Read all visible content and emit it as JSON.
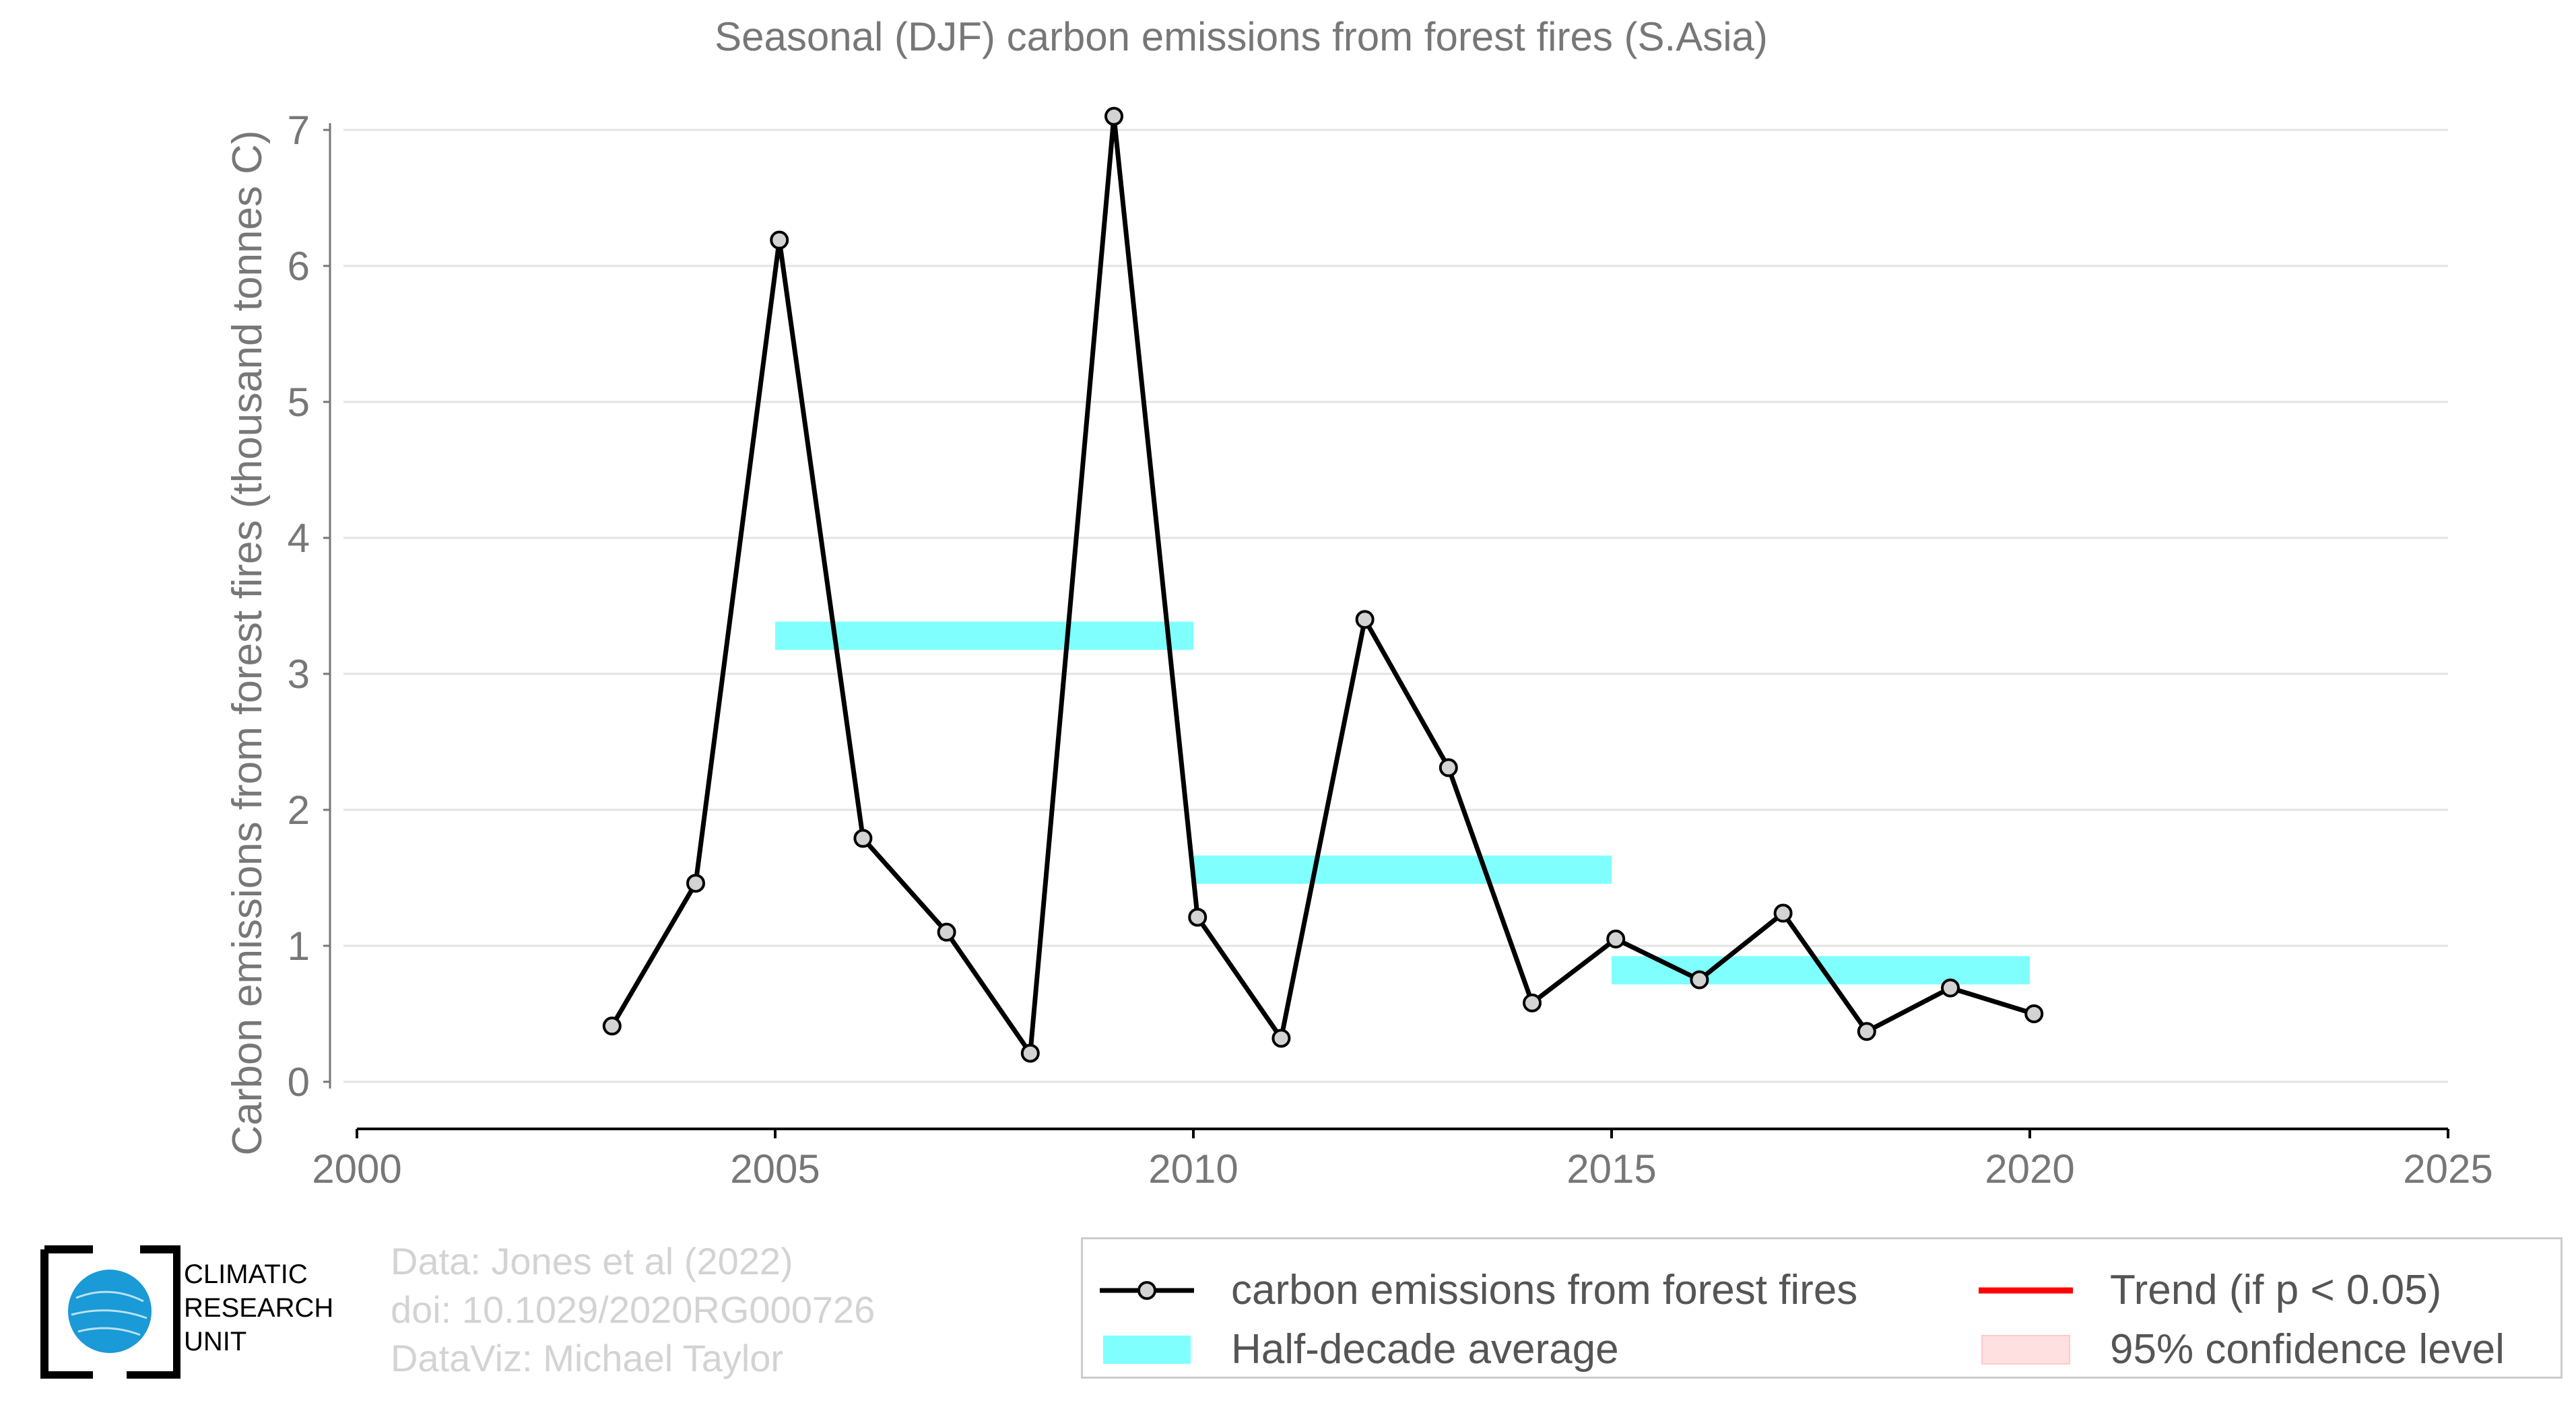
{
  "chart_data": {
    "type": "line",
    "title": "Seasonal (DJF) carbon emissions from forest fires (S.Asia)",
    "xlabel": "",
    "ylabel": "Carbon emissions from forest fires (thousand tonnes C)",
    "xlim": [
      2000,
      2025
    ],
    "ylim": [
      -0.35,
      7.2
    ],
    "xticks": [
      2000,
      2005,
      2010,
      2015,
      2020,
      2025
    ],
    "yticks": [
      0,
      1,
      2,
      3,
      4,
      5,
      6,
      7
    ],
    "grid": "horizontal",
    "legend_position": "bottom-right",
    "series": [
      {
        "name": "carbon emissions from forest fires",
        "color": "#000000",
        "marker_fill": "#d3d3d3",
        "x": [
          2003,
          2004,
          2005,
          2006,
          2007,
          2008,
          2009,
          2010,
          2011,
          2012,
          2013,
          2014,
          2015,
          2016,
          2017,
          2018,
          2019,
          2020
        ],
        "y": [
          0.41,
          1.46,
          6.19,
          1.79,
          1.1,
          0.21,
          7.1,
          1.21,
          0.32,
          3.4,
          2.31,
          0.58,
          1.05,
          0.75,
          1.24,
          0.37,
          0.69,
          0.5
        ]
      }
    ],
    "half_decade_average": {
      "name": "Half-decade average",
      "color": "#80ffff",
      "segments": [
        {
          "x_start": 2005,
          "x_end": 2010,
          "y": 3.28
        },
        {
          "x_start": 2010,
          "x_end": 2015,
          "y": 1.56
        },
        {
          "x_start": 2015,
          "x_end": 2020,
          "y": 0.82
        }
      ]
    }
  },
  "legend": {
    "emissions_label": "carbon emissions from forest fires",
    "average_label": "Half-decade average",
    "trend_label": "Trend (if p < 0.05)",
    "confidence_label": "95% confidence level",
    "trend_color": "#ff0000",
    "confidence_color": "#ffe0e0"
  },
  "footer": {
    "data_line": "Data: Jones et al (2022)",
    "doi_line": "doi: 10.1029/2020RG000726",
    "viz_line": "DataViz: Michael Taylor"
  },
  "logo": {
    "line1": "CLIMATIC",
    "line2": "RESEARCH",
    "line3": "UNIT",
    "globe_color": "#1a9ad6"
  }
}
